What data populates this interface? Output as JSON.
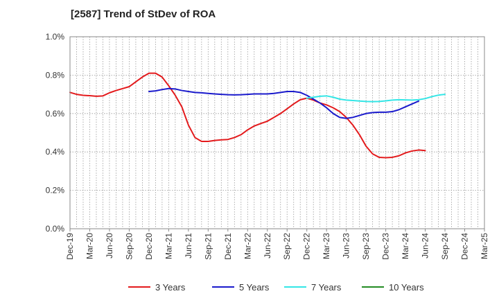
{
  "chart_data": {
    "type": "line",
    "title": "[2587]  Trend of StDev of ROA",
    "xlabel": "",
    "ylabel": "",
    "x_tick_labels": [
      "Dec-19",
      "Mar-20",
      "Jun-20",
      "Sep-20",
      "Dec-20",
      "Mar-21",
      "Jun-21",
      "Sep-21",
      "Dec-21",
      "Mar-22",
      "Jun-22",
      "Sep-22",
      "Dec-22",
      "Mar-23",
      "Jun-23",
      "Sep-23",
      "Dec-23",
      "Mar-24",
      "Jun-24",
      "Sep-24",
      "Dec-24",
      "Mar-25"
    ],
    "y_tick_labels": [
      "0.0%",
      "0.2%",
      "0.4%",
      "0.6%",
      "0.8%",
      "1.0%"
    ],
    "ylim": [
      0,
      1.0
    ],
    "y_unit": "%",
    "grid": true,
    "legend_position": "bottom",
    "colors": {
      "3 Years": "#e31a1c",
      "5 Years": "#1a1acc",
      "7 Years": "#33e6e6",
      "10 Years": "#228b22"
    },
    "series": [
      {
        "name": "3 Years",
        "start": "Dec-19",
        "values": [
          0.71,
          0.7,
          0.695,
          0.693,
          0.69,
          0.692,
          0.708,
          0.72,
          0.73,
          0.74,
          0.765,
          0.79,
          0.81,
          0.81,
          0.79,
          0.745,
          0.695,
          0.635,
          0.54,
          0.475,
          0.455,
          0.455,
          0.46,
          0.463,
          0.465,
          0.475,
          0.49,
          0.515,
          0.535,
          0.548,
          0.56,
          0.58,
          0.6,
          0.625,
          0.65,
          0.672,
          0.68,
          0.67,
          0.655,
          0.645,
          0.63,
          0.61,
          0.58,
          0.54,
          0.49,
          0.43,
          0.39,
          0.372,
          0.37,
          0.372,
          0.38,
          0.395,
          0.405,
          0.41,
          0.407
        ]
      },
      {
        "name": "5 Years",
        "start": "Dec-20",
        "values": [
          0.715,
          0.718,
          0.725,
          0.73,
          0.728,
          0.72,
          0.715,
          0.71,
          0.708,
          0.705,
          0.702,
          0.7,
          0.698,
          0.697,
          0.698,
          0.7,
          0.702,
          0.702,
          0.702,
          0.705,
          0.71,
          0.715,
          0.715,
          0.71,
          0.695,
          0.675,
          0.655,
          0.63,
          0.6,
          0.58,
          0.575,
          0.58,
          0.59,
          0.6,
          0.605,
          0.607,
          0.607,
          0.61,
          0.62,
          0.635,
          0.65,
          0.665
        ]
      },
      {
        "name": "7 Years",
        "start": "Dec-22",
        "values": [
          0.68,
          0.685,
          0.69,
          0.692,
          0.685,
          0.675,
          0.67,
          0.668,
          0.665,
          0.663,
          0.662,
          0.663,
          0.666,
          0.67,
          0.672,
          0.671,
          0.67,
          0.672,
          0.678,
          0.688,
          0.696,
          0.7
        ]
      },
      {
        "name": "10 Years",
        "start": "",
        "values": []
      }
    ]
  }
}
